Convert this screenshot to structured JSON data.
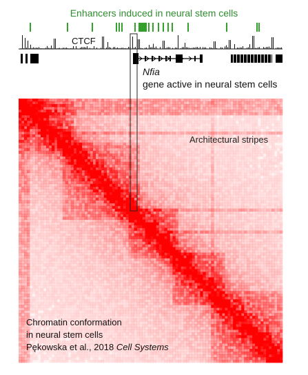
{
  "labels": {
    "enhancers_title": "Enhancers induced in neural stem cells",
    "ctcf": "CTCF",
    "gene_name": "Nfia",
    "gene_desc": "gene active in neural stem cells",
    "stripes": "Architectural stripes",
    "caption_line1": "Chromatin conformation",
    "caption_line2": "in neural stem cells",
    "caption_citation": "Pękowska et al., 2018 ",
    "caption_journal": "Cell Systems"
  },
  "colors": {
    "enhancer": "#33a02c",
    "ctcf": "#111111",
    "heatmap": "#ff0000",
    "text": "#111111"
  }
}
